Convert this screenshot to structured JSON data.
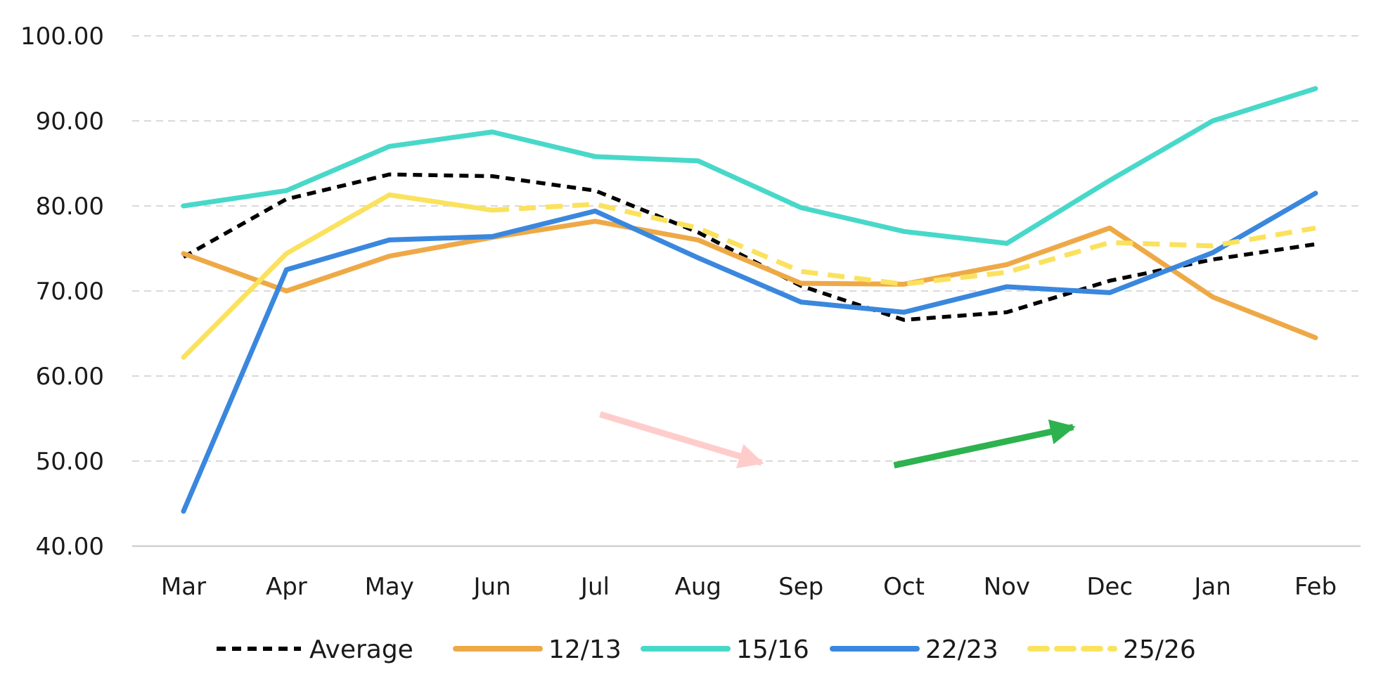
{
  "chart_data": {
    "type": "line",
    "categories": [
      "Mar",
      "Apr",
      "May",
      "Jun",
      "Jul",
      "Aug",
      "Sep",
      "Oct",
      "Nov",
      "Dec",
      "Jan",
      "Feb"
    ],
    "ylim": [
      40,
      100
    ],
    "yticks": [
      "40.00",
      "50.00",
      "60.00",
      "70.00",
      "80.00",
      "90.00",
      "100.00"
    ],
    "grid": true,
    "legend_position": "bottom",
    "title": "",
    "xlabel": "",
    "ylabel": "",
    "series": [
      {
        "name": "Average",
        "color": "#000000",
        "dash": "dashed",
        "values": [
          74.0,
          80.8,
          83.7,
          83.5,
          81.8,
          76.9,
          70.6,
          66.6,
          67.5,
          71.2,
          73.7,
          75.5
        ]
      },
      {
        "name": "12/13",
        "color": "#EEA947",
        "dash": "solid",
        "values": [
          74.4,
          70.0,
          74.1,
          76.3,
          78.2,
          76.0,
          70.9,
          70.8,
          73.1,
          77.4,
          69.3,
          64.5
        ]
      },
      {
        "name": "15/16",
        "color": "#48D8C9",
        "dash": "solid",
        "values": [
          80.0,
          81.8,
          87.0,
          88.7,
          85.8,
          85.3,
          79.8,
          77.0,
          75.6,
          83.0,
          90.0,
          93.8
        ]
      },
      {
        "name": "22/23",
        "color": "#3A87DE",
        "dash": "solid",
        "values": [
          44.1,
          72.5,
          76.0,
          76.4,
          79.4,
          73.9,
          68.7,
          67.5,
          70.5,
          69.8,
          74.5,
          81.5
        ]
      },
      {
        "name": "25/26",
        "color": "#FBE25E",
        "dash": "mixed",
        "values": [
          62.2,
          74.4,
          81.3,
          79.5,
          80.2,
          77.4,
          72.3,
          70.8,
          72.2,
          75.7,
          75.3,
          77.4
        ]
      }
    ],
    "annotations": [
      {
        "type": "arrow",
        "color": "#FFCCCC",
        "from": {
          "x": "Jul",
          "y": 55.5
        },
        "to": {
          "x": "Sep",
          "y": 49.8
        }
      },
      {
        "type": "arrow",
        "color": "#2DB24F",
        "from": {
          "x": "Oct",
          "y": 49.5
        },
        "to": {
          "x": "Dec",
          "y": 54.0
        }
      }
    ]
  }
}
